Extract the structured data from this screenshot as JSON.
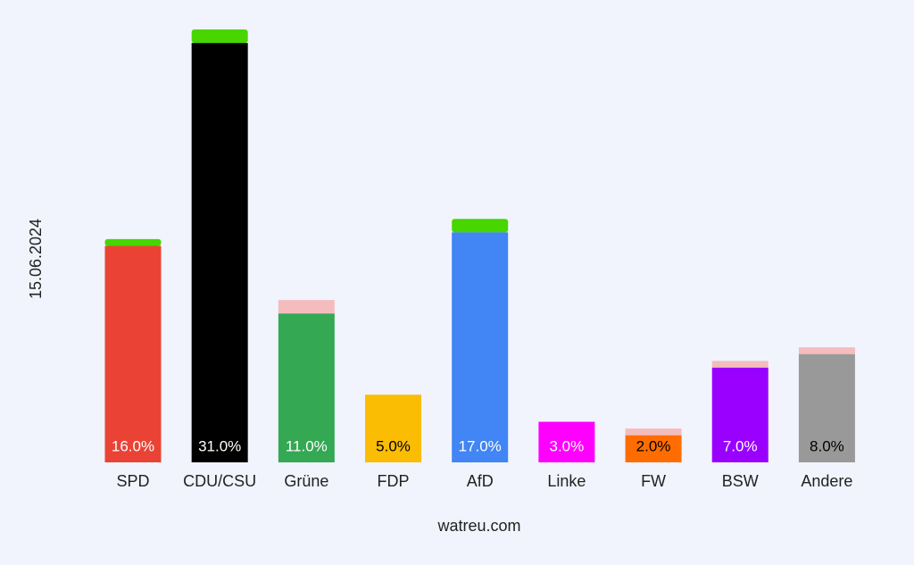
{
  "chart_data": {
    "type": "bar",
    "y_label": "15.06.2024",
    "x_label": "watreu.com",
    "categories": [
      "SPD",
      "CDU/CSU",
      "Grüne",
      "FDP",
      "AfD",
      "Linke",
      "FW",
      "BSW",
      "Andere"
    ],
    "values": [
      16,
      31,
      11,
      5,
      17,
      3,
      2,
      7,
      8
    ],
    "value_labels": [
      "16.0%",
      "31.0%",
      "11.0%",
      "5.0%",
      "17.0%",
      "3.0%",
      "2.0%",
      "7.0%",
      "8.0%"
    ],
    "colors": [
      "#ea4335",
      "#000000",
      "#34a853",
      "#fbbc04",
      "#4285f4",
      "#ff00ff",
      "#ff6d01",
      "#9900ff",
      "#999999"
    ],
    "label_colors": [
      "#ffffff",
      "#ffffff",
      "#ffffff",
      "#000000",
      "#ffffff",
      "#ffffff",
      "#000000",
      "#ffffff",
      "#000000"
    ],
    "changes": [
      0.5,
      1,
      -1,
      0,
      1,
      0,
      -0.5,
      -0.5,
      -0.5
    ],
    "increase_color": "#47d600",
    "decrease_color": "#f4bcbc",
    "ylim": [
      0,
      32
    ]
  }
}
